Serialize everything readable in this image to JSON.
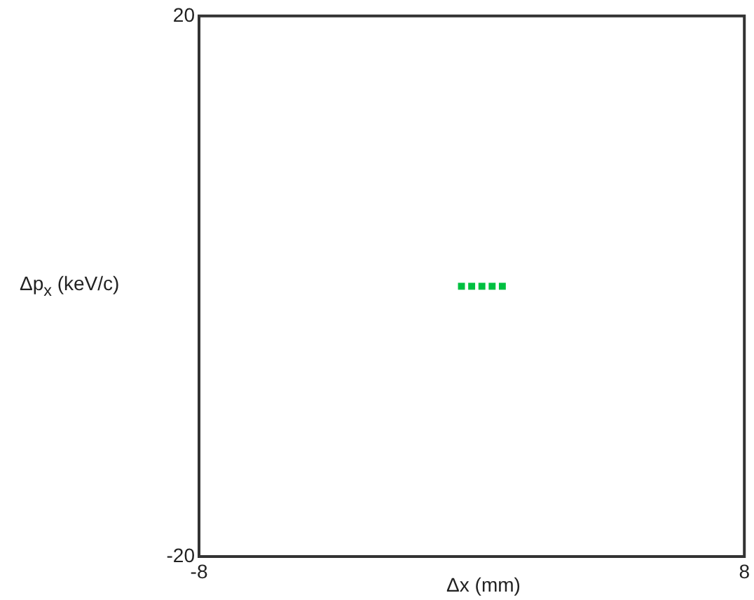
{
  "chart_data": {
    "type": "scatter",
    "xlabel": "Δx (mm)",
    "ylabel": "Δp$_{x}$ (keV/c)",
    "xlim": [
      -8,
      8
    ],
    "ylim": [
      -20,
      20
    ],
    "xticks": [
      -8,
      8
    ],
    "yticks": [
      -20,
      20
    ],
    "marker": "square",
    "series": [
      {
        "color": "#00c040",
        "x": [
          -0.3,
          0,
          0.3,
          0.6,
          0.9
        ],
        "values": [
          0,
          0,
          0,
          0,
          0
        ]
      }
    ]
  }
}
